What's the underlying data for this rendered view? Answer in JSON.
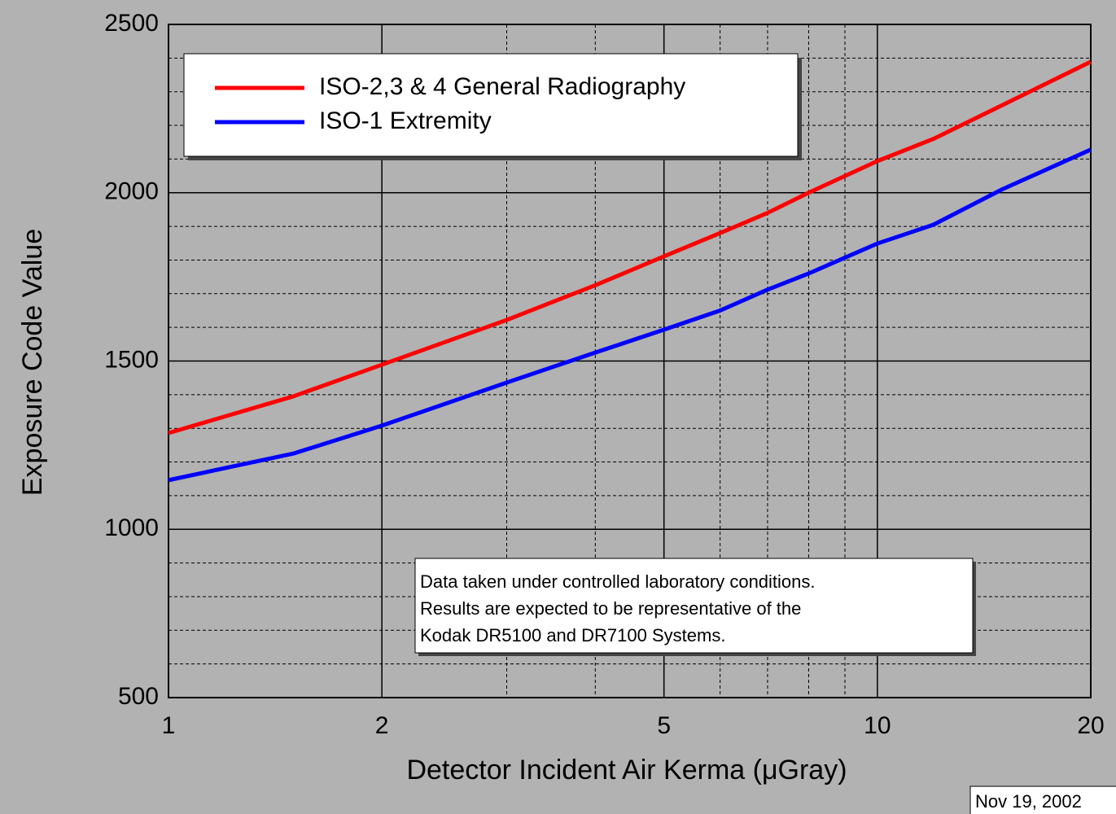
{
  "chart_data": {
    "type": "line",
    "x_label": "Detector Incident Air Kerma (μGray)",
    "y_label": "Exposure Code Value",
    "x": [
      1,
      1.5,
      2,
      3,
      4,
      5,
      6,
      7,
      8,
      10,
      12,
      15,
      20
    ],
    "series": [
      {
        "name": "ISO-2,3 & 4 General Radiography",
        "color": "#ff0000",
        "values": [
          1286,
          1395,
          1489,
          1622,
          1725,
          1811,
          1880,
          1940,
          2000,
          2094,
          2160,
          2260,
          2389
        ]
      },
      {
        "name": "ISO-1 Extremity",
        "color": "#0000ff",
        "values": [
          1146,
          1225,
          1308,
          1436,
          1525,
          1593,
          1650,
          1712,
          1760,
          1849,
          1905,
          2010,
          2128
        ]
      }
    ],
    "xscale": "log",
    "xlim": [
      1,
      20
    ],
    "xticks": [
      1,
      2,
      5,
      10,
      20
    ],
    "xminor": [
      3,
      4,
      6,
      7,
      8,
      9
    ],
    "ylim": [
      500,
      2500
    ],
    "yticks": [
      500,
      1000,
      1500,
      2000,
      2500
    ],
    "yminor": [
      600,
      700,
      800,
      900,
      1100,
      1200,
      1300,
      1400,
      1600,
      1700,
      1800,
      1900,
      2100,
      2200,
      2300,
      2400
    ],
    "grid": true,
    "legend": "upper left",
    "annotation": [
      "Data taken under controlled laboratory conditions.",
      "Results are expected to be representative of the",
      "Kodak DR5100 and DR7100 Systems."
    ],
    "date": "Nov 19, 2002"
  }
}
